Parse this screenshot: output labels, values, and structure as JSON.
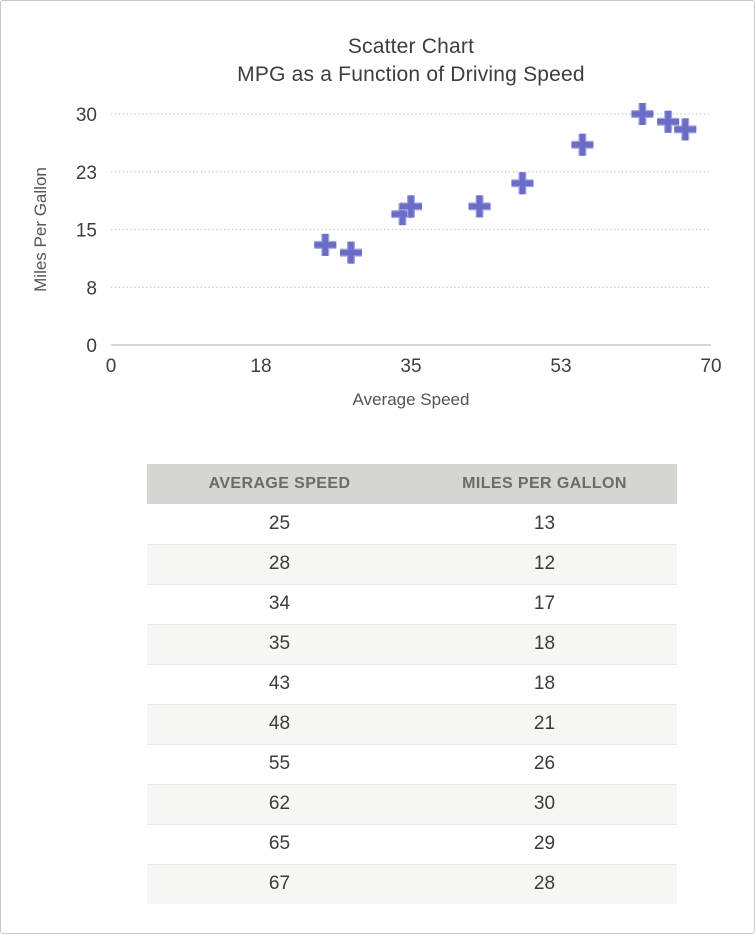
{
  "chart_data": {
    "type": "scatter",
    "title": "Scatter Chart",
    "subtitle": "MPG as a Function of Driving Speed",
    "xlabel": "Average Speed",
    "ylabel": "Miles Per Gallon",
    "x_ticks": [
      "0",
      "18",
      "35",
      "53",
      "70"
    ],
    "y_ticks": [
      "0",
      "8",
      "15",
      "23",
      "30"
    ],
    "xlim": [
      0,
      70
    ],
    "ylim": [
      0,
      30
    ],
    "grid": "horizontal-dotted",
    "legend": "none",
    "marker": "plus",
    "points": [
      {
        "x": 25,
        "y": 13
      },
      {
        "x": 28,
        "y": 12
      },
      {
        "x": 34,
        "y": 17
      },
      {
        "x": 35,
        "y": 18
      },
      {
        "x": 43,
        "y": 18
      },
      {
        "x": 48,
        "y": 21
      },
      {
        "x": 55,
        "y": 26
      },
      {
        "x": 62,
        "y": 30
      },
      {
        "x": 65,
        "y": 29
      },
      {
        "x": 67,
        "y": 28
      }
    ],
    "colors": {
      "marker": "#6a6cc6",
      "marker_halo": "#a2a4e0",
      "gridline": "#c8c8c8",
      "axis_line": "#d6d6d6",
      "tick_label": "#3e3e3e",
      "axis_title": "#545454",
      "title_text": "#3d3d3d"
    }
  },
  "table": {
    "headers": [
      "AVERAGE SPEED",
      "MILES PER GALLON"
    ],
    "rows": [
      [
        "25",
        "13"
      ],
      [
        "28",
        "12"
      ],
      [
        "34",
        "17"
      ],
      [
        "35",
        "18"
      ],
      [
        "43",
        "18"
      ],
      [
        "48",
        "21"
      ],
      [
        "55",
        "26"
      ],
      [
        "62",
        "30"
      ],
      [
        "65",
        "29"
      ],
      [
        "67",
        "28"
      ]
    ],
    "header_bg": "#d5d5d1",
    "header_text_color": "#6c6c64",
    "row_alt_bg": "#f6f6f4"
  }
}
